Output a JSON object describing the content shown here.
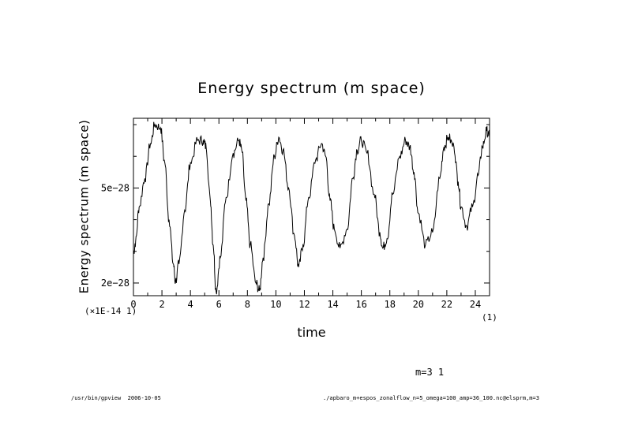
{
  "chart_data": {
    "type": "line",
    "title": "Energy spectrum (m space)",
    "xlabel": "time",
    "ylabel": "Energy spectrum (m space)",
    "x_scale_note": "(×1E-14 1)",
    "x_unit_note": "(1)",
    "xlim": [
      0,
      25
    ],
    "ylim": [
      1.6e-28,
      7.2e-28
    ],
    "x_ticks": [
      0,
      2,
      4,
      6,
      8,
      10,
      12,
      14,
      16,
      18,
      20,
      22,
      24
    ],
    "x_tick_labels": [
      "0",
      "2",
      "4",
      "6",
      "8",
      "10",
      "12",
      "14",
      "16",
      "18",
      "20",
      "22",
      "24"
    ],
    "y_ticks": [
      2e-28,
      5e-28
    ],
    "y_tick_labels": [
      "2e−28",
      "5e−28"
    ],
    "grid": false,
    "series": [
      {
        "x": [
          0,
          0.15,
          0.4,
          0.8,
          1.2,
          1.5,
          1.9,
          2.2,
          2.5,
          2.8,
          2.95,
          3.2,
          3.6,
          4.0,
          4.5,
          4.9,
          5.1,
          5.4,
          5.6,
          5.8,
          6.1,
          6.5,
          7.0,
          7.4,
          7.6,
          7.9,
          8.2,
          8.6,
          8.85,
          9.1,
          9.5,
          9.9,
          10.2,
          10.5,
          10.9,
          11.3,
          11.6,
          11.9,
          12.3,
          12.8,
          13.2,
          13.5,
          13.8,
          14.1,
          14.5,
          15.0,
          15.4,
          15.7,
          16.0,
          16.4,
          16.9,
          17.3,
          17.5,
          17.8,
          18.2,
          18.7,
          19.1,
          19.4,
          19.7,
          20.0,
          20.5,
          21.0,
          21.5,
          21.8,
          22.1,
          22.5,
          22.8,
          23.0,
          23.4,
          23.8,
          24.2,
          24.5,
          24.8,
          25.0
        ],
        "y": [
          2.95e-28,
          3.3e-28,
          4.4e-28,
          5.3e-28,
          6.4e-28,
          7e-28,
          6.9e-28,
          5.8e-28,
          4e-28,
          2.6e-28,
          2.05e-28,
          2.6e-28,
          4.3e-28,
          5.8e-28,
          6.5e-28,
          6.5e-28,
          6.3e-28,
          4.6e-28,
          3.2e-28,
          1.75e-28,
          2.8e-28,
          4.7e-28,
          6.1e-28,
          6.5e-28,
          6.2e-28,
          4.6e-28,
          3.2e-28,
          2e-28,
          1.75e-28,
          2.8e-28,
          4.5e-28,
          6e-28,
          6.6e-28,
          6.2e-28,
          5e-28,
          3.5e-28,
          2.5e-28,
          3.2e-28,
          4.7e-28,
          5.9e-28,
          6.4e-28,
          6e-28,
          4.6e-28,
          3.7e-28,
          3.1e-28,
          3.7e-28,
          5.3e-28,
          6.2e-28,
          6.5e-28,
          6.1e-28,
          4.8e-28,
          3.6e-28,
          3.1e-28,
          3.4e-28,
          4.8e-28,
          6e-28,
          6.5e-28,
          6.3e-28,
          5.5e-28,
          4.2e-28,
          3.2e-28,
          3.6e-28,
          5.3e-28,
          6.3e-28,
          6.6e-28,
          6.3e-28,
          5.2e-28,
          4.4e-28,
          3.8e-28,
          4.4e-28,
          5.4e-28,
          6.3e-28,
          6.8e-28,
          6.6e-28
        ]
      }
    ]
  },
  "annotations": {
    "m_label": "m=3 1",
    "footer_left": "/usr/bin/gpview  2006-10-05",
    "footer_right": "./apbaro_m+espos_zonalflow_n=5_omega=100_amp=36_100.nc@elsprm,m=3"
  }
}
